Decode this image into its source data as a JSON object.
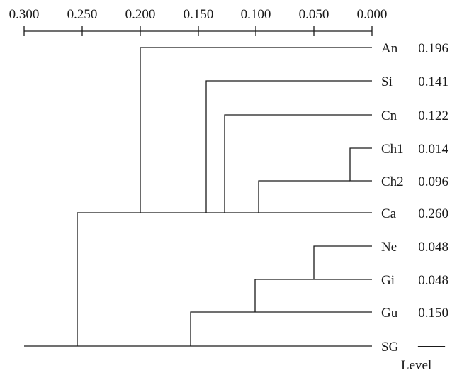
{
  "scale": {
    "ticks": [
      "0.300",
      "0.250",
      "0.200",
      "0.150",
      "0.100",
      "0.050",
      "0.000"
    ]
  },
  "leaves": [
    {
      "name": "An",
      "value": "0.196"
    },
    {
      "name": "Si",
      "value": "0.141"
    },
    {
      "name": "Cn",
      "value": "0.122"
    },
    {
      "name": "Ch1",
      "value": "0.014"
    },
    {
      "name": "Ch2",
      "value": "0.096"
    },
    {
      "name": "Ca",
      "value": "0.260"
    },
    {
      "name": "Ne",
      "value": "0.048"
    },
    {
      "name": "Gi",
      "value": "0.048"
    },
    {
      "name": "Gu",
      "value": "0.150"
    },
    {
      "name": "SG",
      "value": "——"
    }
  ],
  "footer_label": "Level"
}
